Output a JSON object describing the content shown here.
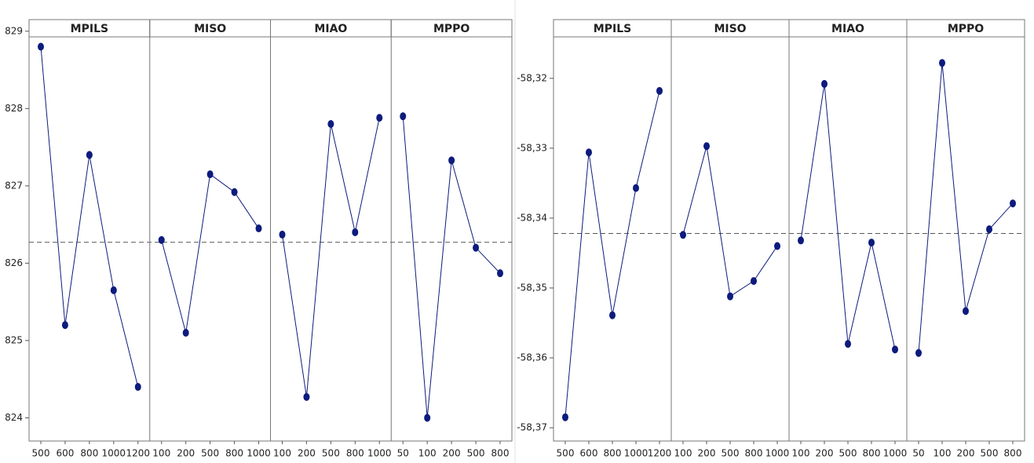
{
  "chart_data": [
    {
      "type": "main-effects",
      "color": "#0d1b7d",
      "ylim": [
        823.7,
        829.15
      ],
      "yticks": [
        824,
        825,
        826,
        827,
        828,
        829
      ],
      "reference": 826.27,
      "panels": [
        {
          "title": "MPILS",
          "categories": [
            "500",
            "600",
            "800",
            "1000",
            "1200"
          ],
          "values": [
            828.8,
            825.2,
            827.4,
            825.65,
            824.4
          ]
        },
        {
          "title": "MISO",
          "categories": [
            "100",
            "200",
            "500",
            "800",
            "1000"
          ],
          "values": [
            826.3,
            825.1,
            827.15,
            826.92,
            826.45
          ]
        },
        {
          "title": "MIAO",
          "categories": [
            "100",
            "200",
            "500",
            "800",
            "1000"
          ],
          "values": [
            826.37,
            824.27,
            827.8,
            826.4,
            827.88
          ]
        },
        {
          "title": "MPPO",
          "categories": [
            "50",
            "100",
            "200",
            "500",
            "800"
          ],
          "values": [
            827.9,
            824.0,
            827.33,
            826.2,
            825.87
          ]
        }
      ]
    },
    {
      "type": "main-effects",
      "color": "#0d1b7d",
      "ylim": [
        -58.3719,
        -58.3116
      ],
      "yticks": [
        {
          "value": -58.37,
          "label": "-58,37"
        },
        {
          "value": -58.36,
          "label": "-58,36"
        },
        {
          "value": -58.35,
          "label": "-58,35"
        },
        {
          "value": -58.34,
          "label": "-58,34"
        },
        {
          "value": -58.33,
          "label": "-58,33"
        },
        {
          "value": -58.32,
          "label": "-58,32"
        }
      ],
      "reference": -58.3422,
      "panels": [
        {
          "title": "MPILS",
          "categories": [
            "500",
            "600",
            "800",
            "1000",
            "1200"
          ],
          "values": [
            -58.3685,
            -58.3306,
            -58.3539,
            -58.3357,
            -58.3218
          ]
        },
        {
          "title": "MISO",
          "categories": [
            "100",
            "200",
            "500",
            "800",
            "1000"
          ],
          "values": [
            -58.3424,
            -58.3297,
            -58.3512,
            -58.349,
            -58.344
          ]
        },
        {
          "title": "MIAO",
          "categories": [
            "100",
            "200",
            "500",
            "800",
            "1000"
          ],
          "values": [
            -58.3432,
            -58.3208,
            -58.358,
            -58.3435,
            -58.3588
          ]
        },
        {
          "title": "MPPO",
          "categories": [
            "50",
            "100",
            "200",
            "500",
            "800"
          ],
          "values": [
            -58.3593,
            -58.3178,
            -58.3533,
            -58.3416,
            -58.3379
          ]
        }
      ]
    }
  ]
}
